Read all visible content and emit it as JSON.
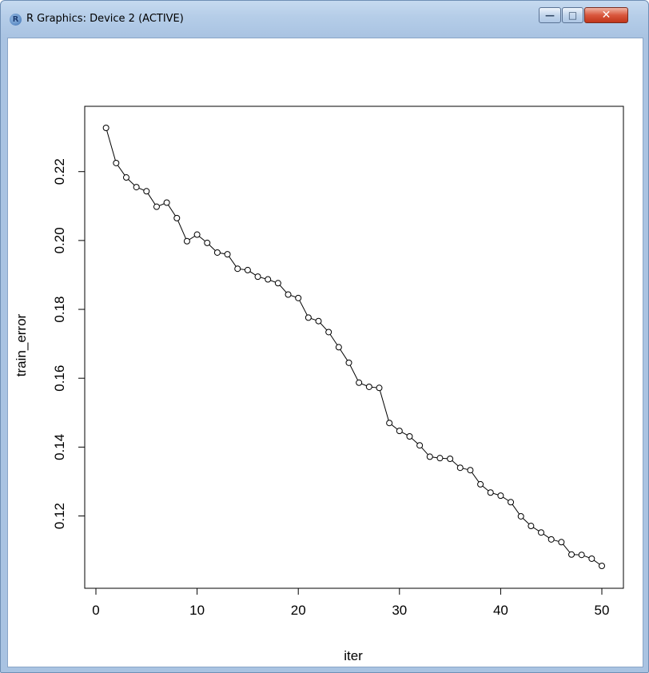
{
  "window": {
    "title": "R Graphics: Device 2 (ACTIVE)",
    "app_icon_letter": "R",
    "buttons": {
      "minimize": "—",
      "maximize": "□",
      "close": "✕"
    }
  },
  "chart_data": {
    "type": "line",
    "title": "",
    "xlabel": "iter",
    "ylabel": "train_error",
    "xlim": [
      0,
      50
    ],
    "ylim": [
      0.104,
      0.234
    ],
    "x_ticks": [
      0,
      10,
      20,
      30,
      40,
      50
    ],
    "y_ticks": [
      0.12,
      0.14,
      0.16,
      0.18,
      0.2,
      0.22
    ],
    "grid": false,
    "markers": "open-circle",
    "series": [
      {
        "x": [
          1,
          2,
          3,
          4,
          5,
          6,
          7,
          8,
          9,
          10,
          11,
          12,
          13,
          14,
          15,
          16,
          17,
          18,
          19,
          20,
          21,
          22,
          23,
          24,
          25,
          26,
          27,
          28,
          29,
          30,
          31,
          32,
          33,
          34,
          35,
          36,
          37,
          38,
          39,
          40,
          41,
          42,
          43,
          44,
          45,
          46,
          47,
          48,
          49,
          50
        ],
        "values": [
          0.2327,
          0.2225,
          0.2183,
          0.2155,
          0.2143,
          0.2098,
          0.211,
          0.2065,
          0.1998,
          0.2017,
          0.1993,
          0.1965,
          0.196,
          0.1918,
          0.1914,
          0.1895,
          0.1887,
          0.1876,
          0.1843,
          0.1833,
          0.1776,
          0.1766,
          0.1734,
          0.169,
          0.1645,
          0.1587,
          0.1575,
          0.1572,
          0.147,
          0.1447,
          0.1431,
          0.1405,
          0.1372,
          0.1368,
          0.1366,
          0.134,
          0.1333,
          0.1292,
          0.1268,
          0.1259,
          0.124,
          0.1199,
          0.1171,
          0.1152,
          0.1132,
          0.1124,
          0.1088,
          0.1087,
          0.1076,
          0.1055
        ]
      }
    ]
  }
}
